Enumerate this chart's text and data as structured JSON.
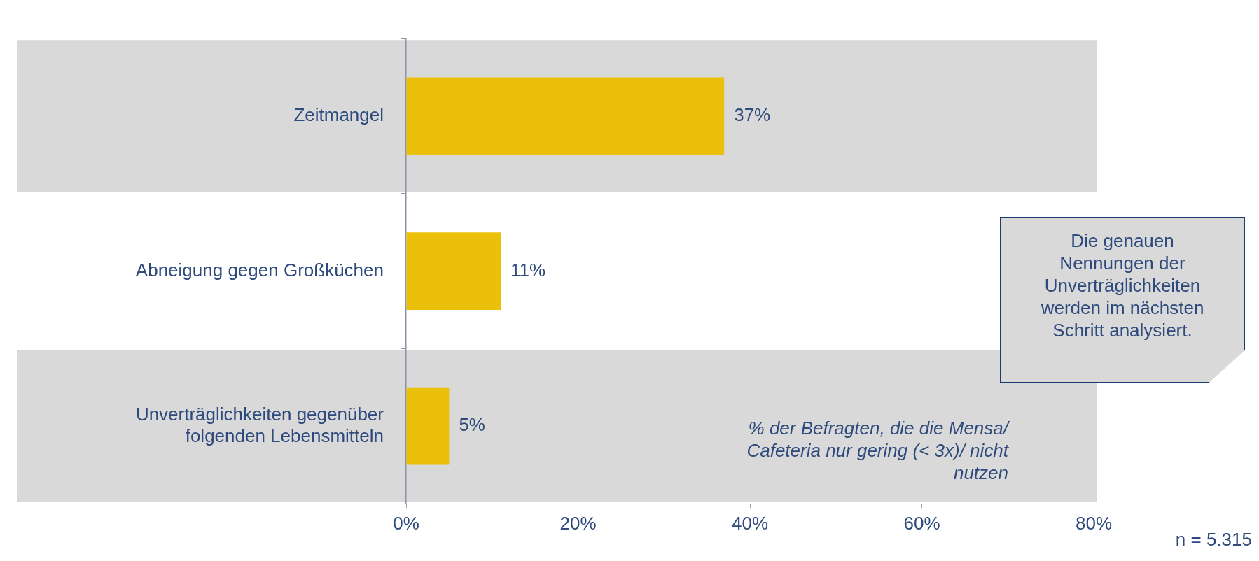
{
  "chart_data": {
    "type": "bar",
    "orientation": "horizontal",
    "categories": [
      "Zeitmangel",
      "Abneigung gegen Großküchen",
      "Unverträglichkeiten gegenüber folgenden Lebensmitteln"
    ],
    "values": [
      37,
      11,
      5
    ],
    "color": "#ebc00a",
    "value_labels": [
      "37%",
      "11%",
      "5%"
    ],
    "xlim": [
      0,
      80
    ],
    "xticks": [
      {
        "value": 0,
        "label": "0%"
      },
      {
        "value": 20,
        "label": "20%"
      },
      {
        "value": 40,
        "label": "40%"
      },
      {
        "value": 60,
        "label": "60%"
      },
      {
        "value": 80,
        "label": "80%"
      }
    ],
    "bands": [
      {
        "axis": "y",
        "from": "Zeitmangel",
        "to": "Zeitmangel",
        "color": "#d9d9d9"
      },
      {
        "axis": "y",
        "from": "Unverträglichkeiten gegenüber folgenden Lebensmitteln",
        "to": "Unverträglichkeiten gegenüber folgenden Lebensmitteln",
        "color": "#d9d9d9"
      }
    ],
    "annotations": [
      "Die genauen Nennungen der Unverträglichkeiten werden im nächsten Schritt analysiert.",
      "% der Befragten, die die Mensa/ Cafeteria nur gering (< 3x)/ nicht nutzen",
      "n = 5.315"
    ],
    "grid": false,
    "legend": false
  }
}
